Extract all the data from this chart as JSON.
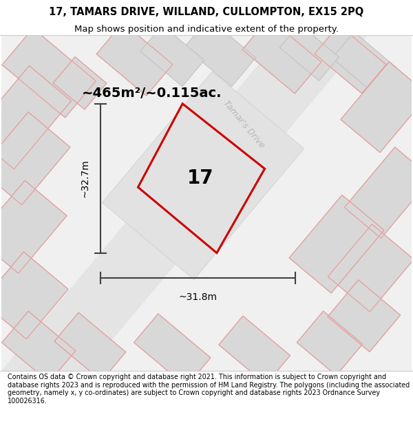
{
  "title_line1": "17, TAMARS DRIVE, WILLAND, CULLOMPTON, EX15 2PQ",
  "title_line2": "Map shows position and indicative extent of the property.",
  "footer": "Contains OS data © Crown copyright and database right 2021. This information is subject to Crown copyright and database rights 2023 and is reproduced with the permission of HM Land Registry. The polygons (including the associated geometry, namely x, y co-ordinates) are subject to Crown copyright and database rights 2023 Ordnance Survey 100026316.",
  "area_label": "~465m²/~0.115ac.",
  "number_label": "17",
  "dim_h": "~32.7m",
  "dim_w": "~31.8m",
  "road_label": "Tamar's Drive",
  "map_bg": "#f0f0f0",
  "building_fill": "#d8d8d8",
  "building_edge": "#c0c0c0",
  "road_fill": "#e8e8e8",
  "pink_edge": "#e8a0a0",
  "red_outline": "#cc0000",
  "dim_color": "#404040",
  "title_fontsize": 10.5,
  "subtitle_fontsize": 9.5,
  "footer_fontsize": 6.9,
  "area_fontsize": 14,
  "num_fontsize": 20,
  "dim_fontsize": 10,
  "road_fontsize": 9
}
